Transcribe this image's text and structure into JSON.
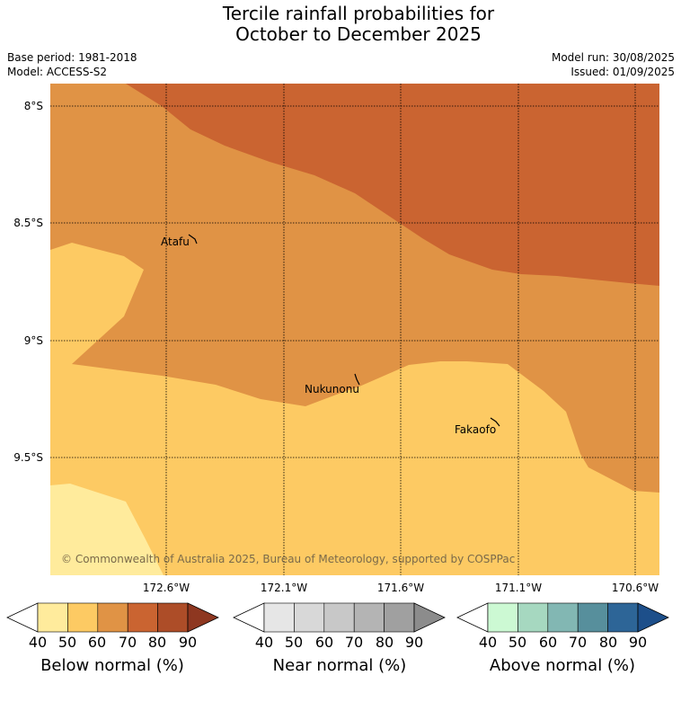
{
  "title": {
    "line1": "Tercile rainfall probabilities for",
    "line2": "October to December 2025"
  },
  "meta": {
    "base_period": "Base period: 1981-2018",
    "model": "Model: ACCESS-S2",
    "model_run": "Model run: 30/08/2025",
    "issued": "Issued: 01/09/2025"
  },
  "map": {
    "latitude_labels": [
      "8°S",
      "8.5°S",
      "9°S",
      "9.5°S"
    ],
    "longitude_labels": [
      "172.6°W",
      "172.1°W",
      "171.6°W",
      "171.1°W",
      "170.6°W"
    ],
    "places": [
      "Atafu",
      "Nukunonu",
      "Fakaofo"
    ],
    "copyright": "© Commonwealth of Australia 2025, Bureau of Meteorology, supported by COSPPac",
    "category_colors": {
      "below_40_50": "#ffeb9c",
      "below_50_60": "#fdca63",
      "below_60_70": "#e09345",
      "below_70_80": "#ca6431"
    }
  },
  "colorbars": [
    {
      "title": "Below normal (%)",
      "ticks": [
        "40",
        "50",
        "60",
        "70",
        "80",
        "90"
      ],
      "colors": [
        "#ffffff",
        "#ffeb9c",
        "#fdca63",
        "#e09345",
        "#ca6431",
        "#ad4d28",
        "#8e3720"
      ]
    },
    {
      "title": "Near normal (%)",
      "ticks": [
        "40",
        "50",
        "60",
        "70",
        "80",
        "90"
      ],
      "colors": [
        "#ffffff",
        "#e6e6e6",
        "#d8d8d8",
        "#c8c8c8",
        "#b4b4b4",
        "#a0a0a0",
        "#8c8c8c"
      ]
    },
    {
      "title": "Above normal (%)",
      "ticks": [
        "40",
        "50",
        "60",
        "70",
        "80",
        "90"
      ],
      "colors": [
        "#ffffff",
        "#ccf9d3",
        "#a6d8c0",
        "#82b7b3",
        "#578f9c",
        "#2d6597",
        "#1d4f8a"
      ]
    }
  ]
}
